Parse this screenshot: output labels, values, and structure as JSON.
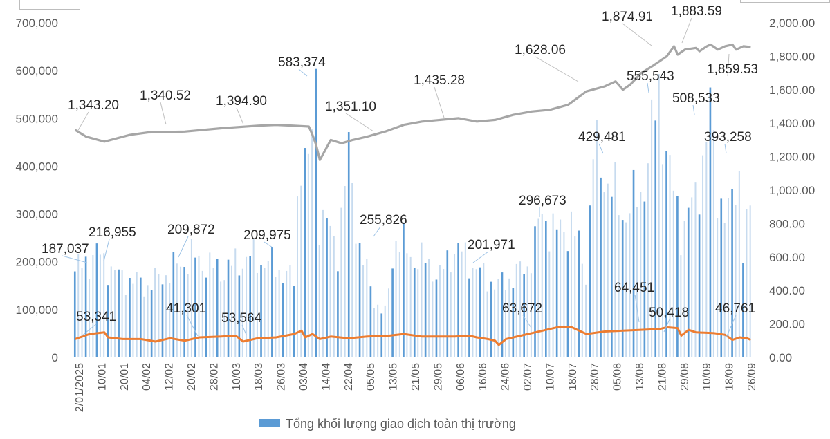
{
  "chart_data": {
    "type": "bar+line",
    "title": "",
    "legend": {
      "label": "Tổng khối lượng giao dịch toàn thị trường",
      "placement": "bottom-center"
    },
    "colors": {
      "volume_bar": "#5b9bd5",
      "volume_bar_light": "#c7dbef",
      "index_line": "#a6a6a6",
      "matched_line": "#ed7d31",
      "axis_text": "#595959",
      "label_text": "#262626"
    },
    "axes": {
      "left": {
        "min": 0,
        "max": 700000,
        "step": 100000,
        "tick_labels": [
          "0",
          "100,000",
          "200,000",
          "300,000",
          "400,000",
          "500,000",
          "600,000",
          "700,000"
        ]
      },
      "right": {
        "min": 0,
        "max": 2000,
        "step": 200,
        "tick_labels": [
          "0.00",
          "200.00",
          "400.00",
          "600.00",
          "800.00",
          "1,000.00",
          "1,200.00",
          "1,400.00",
          "1,600.00",
          "1,800.00",
          "2,000.00"
        ]
      }
    },
    "x_tick_labels": [
      "2/01/2025",
      "10/01",
      "20/01",
      "04/02",
      "12/02",
      "20/02",
      "28/02",
      "10/03",
      "18/03",
      "26/03",
      "03/04",
      "14/04",
      "22/04",
      "05/05",
      "13/05",
      "21/05",
      "29/05",
      "06/06",
      "16/06",
      "24/06",
      "02/07",
      "10/07",
      "18/07",
      "28/07",
      "05/08",
      "13/08",
      "21/08",
      "29/08",
      "10/09",
      "18/09",
      "26/09"
    ],
    "session_count": 186,
    "index_keypoints": [
      [
        0,
        1360
      ],
      [
        3,
        1320
      ],
      [
        8,
        1290
      ],
      [
        15,
        1330
      ],
      [
        20,
        1345
      ],
      [
        30,
        1350
      ],
      [
        40,
        1370
      ],
      [
        50,
        1385
      ],
      [
        55,
        1390
      ],
      [
        60,
        1385
      ],
      [
        64,
        1380
      ],
      [
        65,
        1330
      ],
      [
        66,
        1270
      ],
      [
        67,
        1180
      ],
      [
        68,
        1220
      ],
      [
        70,
        1300
      ],
      [
        73,
        1280
      ],
      [
        76,
        1300
      ],
      [
        80,
        1320
      ],
      [
        85,
        1351
      ],
      [
        90,
        1390
      ],
      [
        95,
        1410
      ],
      [
        100,
        1420
      ],
      [
        105,
        1430
      ],
      [
        110,
        1410
      ],
      [
        115,
        1420
      ],
      [
        120,
        1450
      ],
      [
        125,
        1470
      ],
      [
        130,
        1480
      ],
      [
        135,
        1510
      ],
      [
        140,
        1590
      ],
      [
        145,
        1620
      ],
      [
        148,
        1650
      ],
      [
        150,
        1600
      ],
      [
        152,
        1630
      ],
      [
        155,
        1700
      ],
      [
        158,
        1740
      ],
      [
        160,
        1770
      ],
      [
        162,
        1800
      ],
      [
        164,
        1860
      ],
      [
        165,
        1810
      ],
      [
        167,
        1840
      ],
      [
        170,
        1850
      ],
      [
        171,
        1830
      ],
      [
        173,
        1860
      ],
      [
        174,
        1870
      ],
      [
        176,
        1840
      ],
      [
        178,
        1860
      ],
      [
        180,
        1870
      ],
      [
        181,
        1840
      ],
      [
        183,
        1860
      ],
      [
        185,
        1855
      ]
    ],
    "matched_keypoints": [
      [
        0,
        110
      ],
      [
        4,
        140
      ],
      [
        8,
        150
      ],
      [
        9,
        120
      ],
      [
        13,
        110
      ],
      [
        18,
        110
      ],
      [
        22,
        95
      ],
      [
        26,
        115
      ],
      [
        30,
        100
      ],
      [
        34,
        120
      ],
      [
        40,
        125
      ],
      [
        44,
        130
      ],
      [
        46,
        95
      ],
      [
        50,
        115
      ],
      [
        55,
        120
      ],
      [
        60,
        140
      ],
      [
        62,
        160
      ],
      [
        63,
        120
      ],
      [
        65,
        140
      ],
      [
        67,
        110
      ],
      [
        70,
        125
      ],
      [
        75,
        115
      ],
      [
        80,
        125
      ],
      [
        86,
        130
      ],
      [
        90,
        140
      ],
      [
        95,
        125
      ],
      [
        100,
        125
      ],
      [
        104,
        125
      ],
      [
        108,
        130
      ],
      [
        110,
        120
      ],
      [
        113,
        110
      ],
      [
        115,
        100
      ],
      [
        116,
        75
      ],
      [
        118,
        110
      ],
      [
        125,
        145
      ],
      [
        128,
        160
      ],
      [
        132,
        180
      ],
      [
        136,
        180
      ],
      [
        140,
        140
      ],
      [
        145,
        155
      ],
      [
        150,
        160
      ],
      [
        155,
        165
      ],
      [
        160,
        170
      ],
      [
        162,
        180
      ],
      [
        165,
        175
      ],
      [
        166,
        130
      ],
      [
        168,
        165
      ],
      [
        170,
        150
      ],
      [
        175,
        145
      ],
      [
        178,
        135
      ],
      [
        180,
        105
      ],
      [
        182,
        120
      ],
      [
        184,
        115
      ],
      [
        185,
        105
      ]
    ],
    "left_annotations": [
      {
        "text": "216,955"
      },
      {
        "text": "187,037"
      },
      {
        "text": "209,872"
      },
      {
        "text": "209,975"
      },
      {
        "text": "583,374"
      },
      {
        "text": "255,826"
      },
      {
        "text": "201,971"
      },
      {
        "text": "296,673"
      },
      {
        "text": "429,481"
      },
      {
        "text": "555,543"
      },
      {
        "text": "508,533"
      },
      {
        "text": "393,258"
      },
      {
        "text": "53,341"
      },
      {
        "text": "41,301"
      },
      {
        "text": "53,564"
      },
      {
        "text": "63,672"
      },
      {
        "text": "64,451"
      },
      {
        "text": "50,418"
      },
      {
        "text": "46,761"
      }
    ],
    "right_annotations": [
      {
        "text": "1,343.20"
      },
      {
        "text": "1,340.52"
      },
      {
        "text": "1,394.90"
      },
      {
        "text": "1,351.10"
      },
      {
        "text": "1,435.28"
      },
      {
        "text": "1,628.06"
      },
      {
        "text": "1,874.91"
      },
      {
        "text": "1,883.59"
      },
      {
        "text": "1,859.53"
      }
    ]
  }
}
